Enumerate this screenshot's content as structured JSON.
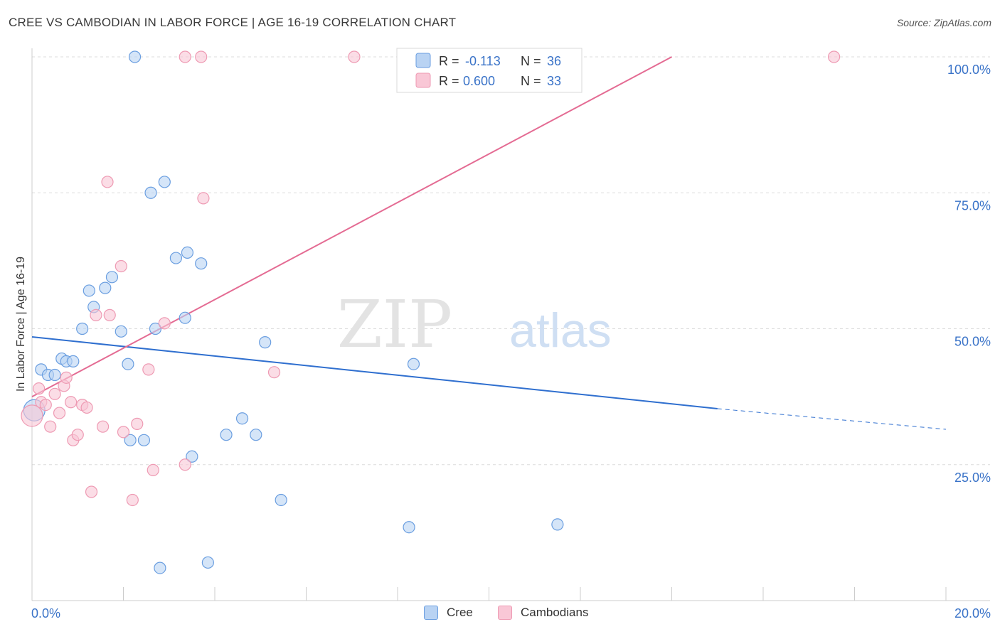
{
  "header": {
    "title": "CREE VS CAMBODIAN IN LABOR FORCE | AGE 16-19 CORRELATION CHART",
    "source": "Source: ZipAtlas.com"
  },
  "watermark": {
    "zip": "ZIP",
    "atlas": "atlas"
  },
  "colors": {
    "cree_fill": "#b9d3f3",
    "cree_stroke": "#6a9ee0",
    "cree_line": "#2f6fcf",
    "camb_fill": "#f9c7d6",
    "camb_stroke": "#ee9ab3",
    "camb_line": "#e46b93",
    "value_text": "#3a73c8"
  },
  "legend": {
    "rows": [
      {
        "r_label": "R =",
        "r_value": "-0.113",
        "n_label": "N =",
        "n_value": "36"
      },
      {
        "r_label": "R =",
        "r_value": "0.600",
        "n_label": "N =",
        "n_value": "33"
      }
    ]
  },
  "chart_data": {
    "type": "scatter",
    "title": "CREE VS CAMBODIAN IN LABOR FORCE | AGE 16-19 CORRELATION CHART",
    "xlabel": "",
    "ylabel": "In Labor Force | Age 16-19",
    "xlim": [
      0,
      20
    ],
    "ylim": [
      0,
      100
    ],
    "x_tick_labels": [
      "0.0%",
      "20.0%"
    ],
    "y_tick_labels": [
      "100.0%",
      "75.0%",
      "50.0%",
      "25.0%"
    ],
    "y_tick_values": [
      100,
      75,
      50,
      25
    ],
    "grid": true,
    "legend_position": "bottom",
    "series": [
      {
        "name": "Cree",
        "points": [
          [
            0.05,
            35.0
          ],
          [
            0.2,
            42.5
          ],
          [
            0.35,
            41.5
          ],
          [
            0.5,
            41.5
          ],
          [
            0.65,
            44.5
          ],
          [
            0.75,
            44.0
          ],
          [
            0.9,
            44.0
          ],
          [
            1.1,
            50.0
          ],
          [
            1.25,
            57.0
          ],
          [
            1.35,
            54.0
          ],
          [
            1.6,
            57.5
          ],
          [
            1.75,
            59.5
          ],
          [
            1.95,
            49.5
          ],
          [
            2.1,
            43.5
          ],
          [
            2.15,
            29.5
          ],
          [
            2.25,
            100.0
          ],
          [
            2.45,
            29.5
          ],
          [
            2.6,
            75.0
          ],
          [
            2.7,
            50.0
          ],
          [
            2.8,
            6.0
          ],
          [
            2.9,
            77.0
          ],
          [
            3.15,
            63.0
          ],
          [
            3.35,
            52.0
          ],
          [
            3.4,
            64.0
          ],
          [
            3.5,
            26.5
          ],
          [
            3.7,
            62.0
          ],
          [
            3.85,
            7.0
          ],
          [
            4.25,
            30.5
          ],
          [
            4.6,
            33.5
          ],
          [
            4.9,
            30.5
          ],
          [
            5.1,
            47.5
          ],
          [
            5.45,
            18.5
          ],
          [
            8.25,
            13.5
          ],
          [
            8.35,
            43.5
          ],
          [
            11.0,
            100.0
          ],
          [
            11.5,
            14.0
          ]
        ],
        "trend": {
          "x0": 0.0,
          "y0": 48.5,
          "x1": 15.0,
          "y1": 35.3,
          "dash_to_x": 20.0,
          "dash_to_y": 31.5
        }
      },
      {
        "name": "Cambodians",
        "points": [
          [
            0.0,
            34.0
          ],
          [
            0.15,
            39.0
          ],
          [
            0.2,
            36.5
          ],
          [
            0.3,
            36.0
          ],
          [
            0.4,
            32.0
          ],
          [
            0.5,
            38.0
          ],
          [
            0.6,
            34.5
          ],
          [
            0.7,
            39.5
          ],
          [
            0.75,
            41.0
          ],
          [
            0.85,
            36.5
          ],
          [
            0.9,
            29.5
          ],
          [
            1.0,
            30.5
          ],
          [
            1.1,
            36.0
          ],
          [
            1.2,
            35.5
          ],
          [
            1.3,
            20.0
          ],
          [
            1.4,
            52.5
          ],
          [
            1.55,
            32.0
          ],
          [
            1.65,
            77.0
          ],
          [
            1.7,
            52.5
          ],
          [
            1.95,
            61.5
          ],
          [
            2.0,
            31.0
          ],
          [
            2.2,
            18.5
          ],
          [
            2.3,
            32.5
          ],
          [
            2.55,
            42.5
          ],
          [
            2.65,
            24.0
          ],
          [
            2.9,
            51.0
          ],
          [
            3.35,
            25.0
          ],
          [
            3.7,
            100.0
          ],
          [
            3.75,
            74.0
          ],
          [
            3.35,
            100.0
          ],
          [
            5.3,
            42.0
          ],
          [
            7.05,
            100.0
          ],
          [
            17.55,
            100.0
          ]
        ],
        "trend": {
          "x0": 0.0,
          "y0": 37.5,
          "x1": 14.0,
          "y1": 100.0
        }
      }
    ]
  }
}
